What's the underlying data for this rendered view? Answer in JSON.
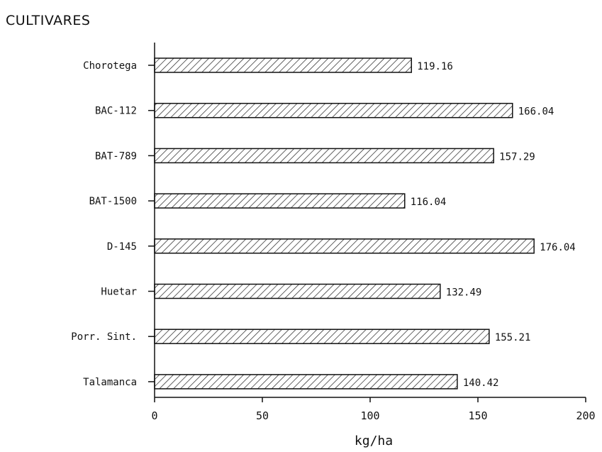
{
  "chart_data": {
    "type": "bar",
    "orientation": "horizontal",
    "title": "CULTIVARES",
    "xlabel": "kg/ha",
    "ylabel": "",
    "xlim": [
      0,
      200
    ],
    "xticks": [
      "0",
      "50",
      "100",
      "150",
      "200"
    ],
    "categories": [
      "Chorotega",
      "BAC-112",
      "BAT-789",
      "BAT-1500",
      "D-145",
      "Huetar",
      "Porr. Sint.",
      "Talamanca"
    ],
    "values": [
      119.16,
      166.04,
      157.29,
      116.04,
      176.04,
      132.49,
      155.21,
      140.42
    ],
    "value_labels": [
      "119.16",
      "166.04",
      "157.29",
      "116.04",
      "176.04",
      "132.49",
      "155.21",
      "140.42"
    ],
    "bar_fill": "diagonal-hatch",
    "grid": false,
    "legend": "none"
  }
}
